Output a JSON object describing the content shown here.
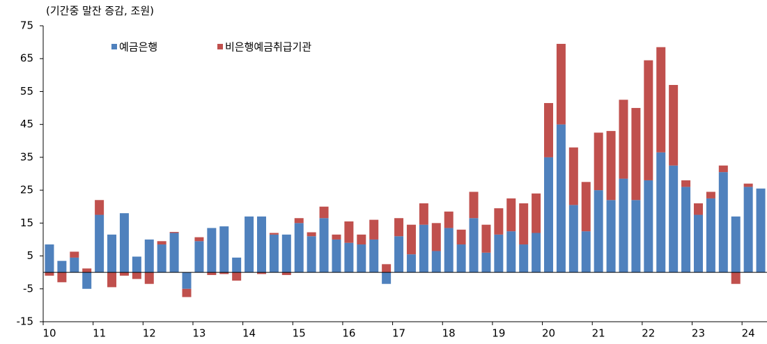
{
  "chart_data": {
    "type": "stacked_bar",
    "title": "(기간중 말잔 증감, 조원)",
    "categories": [
      "10",
      null,
      null,
      null,
      "11",
      null,
      null,
      null,
      "12",
      null,
      null,
      null,
      "13",
      null,
      null,
      null,
      "14",
      null,
      null,
      null,
      "15",
      null,
      null,
      null,
      "16",
      null,
      null,
      null,
      "17",
      null,
      null,
      null,
      "18",
      null,
      null,
      null,
      "19",
      null,
      null,
      null,
      "20",
      null,
      null,
      null,
      "21",
      null,
      null,
      null,
      "22",
      null,
      null,
      null,
      "23",
      null,
      null,
      null,
      "24",
      null
    ],
    "series": [
      {
        "name": "예금은행",
        "color": "#4f81bd",
        "values": [
          8.5,
          3.5,
          4.5,
          -5,
          17.5,
          11.5,
          18,
          4.8,
          10,
          8.5,
          12,
          -5,
          9.5,
          13.5,
          14,
          4.5,
          17,
          17,
          11.5,
          11.5,
          15,
          11,
          16.5,
          10,
          9,
          8.5,
          10,
          -3.5,
          11,
          5.5,
          14.5,
          6.5,
          13.5,
          8.5,
          16.5,
          6,
          11.5,
          12.5,
          8.5,
          12,
          35,
          45,
          20.5,
          12.5,
          25,
          22,
          28.5,
          22,
          28,
          36.5,
          32.5,
          26,
          17.5,
          22.5,
          30.5,
          17,
          26,
          25.5
        ]
      },
      {
        "name": "비은행예금취급기관",
        "color": "#c0504d",
        "values": [
          -1,
          -3,
          1.8,
          1.2,
          4.5,
          -4.5,
          -1,
          -2,
          -3.5,
          1,
          0.3,
          -2.5,
          1.2,
          -0.8,
          -0.5,
          -2.5,
          0,
          -0.5,
          0.5,
          -0.8,
          1.5,
          1.2,
          3.5,
          1.5,
          6.5,
          3,
          6,
          2.5,
          5.5,
          9,
          6.5,
          8.5,
          5,
          4.5,
          8,
          8.5,
          8,
          10,
          12.5,
          12,
          16.5,
          24.5,
          17.5,
          15,
          17.5,
          21,
          24,
          28,
          36.5,
          32,
          24.5,
          2,
          3.5,
          2,
          2,
          -3.5,
          1,
          0
        ]
      }
    ],
    "ylim": [
      -15,
      75
    ],
    "yticks": [
      -15,
      -5,
      5,
      15,
      25,
      35,
      45,
      55,
      65,
      75
    ]
  }
}
